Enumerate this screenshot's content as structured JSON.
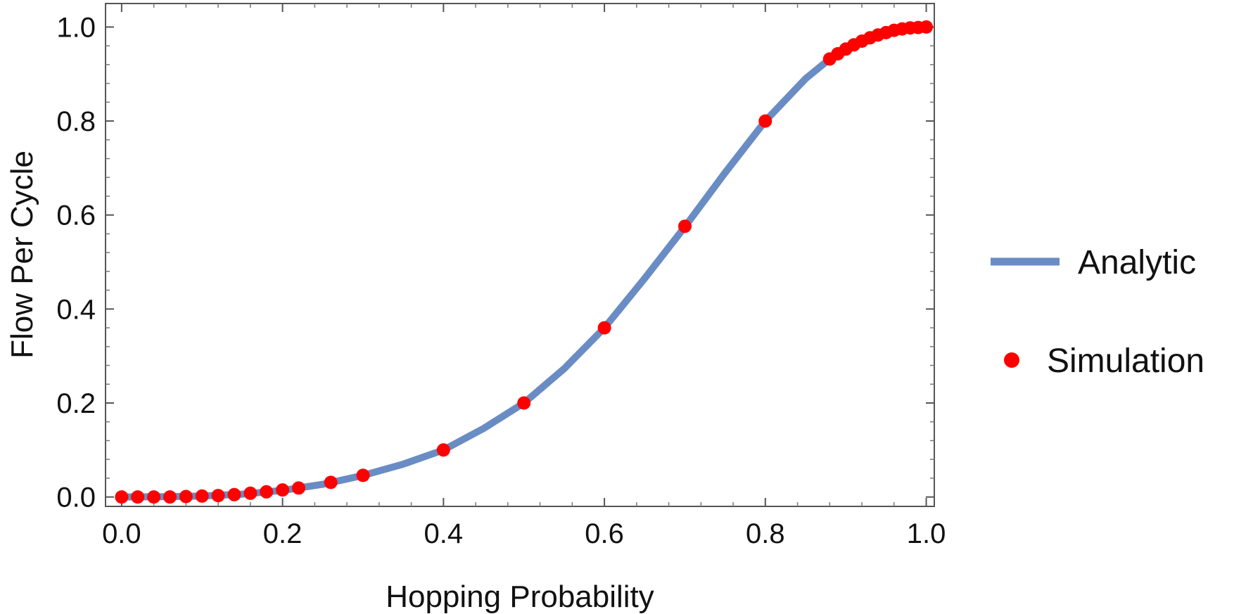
{
  "chart_data": {
    "type": "line",
    "title": "",
    "xlabel": "Hopping Probability",
    "ylabel": "Flow Per Cycle",
    "xlim": [
      -0.02,
      1.01
    ],
    "ylim": [
      -0.02,
      1.05
    ],
    "x_ticks": [
      0.0,
      0.2,
      0.4,
      0.6,
      0.8,
      1.0
    ],
    "x_tick_labels": [
      "0.0",
      "0.2",
      "0.4",
      "0.6",
      "0.8",
      "1.0"
    ],
    "y_ticks": [
      0.0,
      0.2,
      0.4,
      0.6,
      0.8,
      1.0
    ],
    "y_tick_labels": [
      "0.0",
      "0.2",
      "0.4",
      "0.6",
      "0.8",
      "1.0"
    ],
    "grid": false,
    "legend_position": "right",
    "series": [
      {
        "name": "Analytic",
        "style": "line",
        "color": "#6a8cc4",
        "x": [
          0.0,
          0.05,
          0.1,
          0.15,
          0.2,
          0.25,
          0.3,
          0.35,
          0.4,
          0.45,
          0.5,
          0.55,
          0.6,
          0.65,
          0.7,
          0.75,
          0.8,
          0.85,
          0.88,
          0.9,
          0.92,
          0.94,
          0.96,
          0.98,
          1.0
        ],
        "y": [
          0.0,
          0.0005,
          0.002,
          0.006,
          0.014,
          0.027,
          0.046,
          0.07,
          0.1,
          0.146,
          0.2,
          0.273,
          0.36,
          0.465,
          0.575,
          0.69,
          0.8,
          0.89,
          0.932,
          0.952,
          0.97,
          0.983,
          0.993,
          0.998,
          1.0
        ]
      },
      {
        "name": "Simulation",
        "style": "scatter",
        "color": "#ff0000",
        "x": [
          0.0,
          0.02,
          0.04,
          0.06,
          0.08,
          0.1,
          0.12,
          0.14,
          0.16,
          0.18,
          0.2,
          0.22,
          0.26,
          0.3,
          0.4,
          0.5,
          0.6,
          0.7,
          0.8,
          0.88,
          0.89,
          0.9,
          0.91,
          0.92,
          0.93,
          0.94,
          0.95,
          0.96,
          0.97,
          0.98,
          0.99,
          1.0
        ],
        "y": [
          0.0,
          0.0,
          0.0,
          0.0,
          0.001,
          0.002,
          0.003,
          0.005,
          0.008,
          0.011,
          0.015,
          0.019,
          0.031,
          0.046,
          0.1,
          0.2,
          0.36,
          0.576,
          0.8,
          0.932,
          0.943,
          0.953,
          0.962,
          0.97,
          0.977,
          0.983,
          0.988,
          0.993,
          0.996,
          0.998,
          0.999,
          1.0
        ]
      }
    ]
  }
}
